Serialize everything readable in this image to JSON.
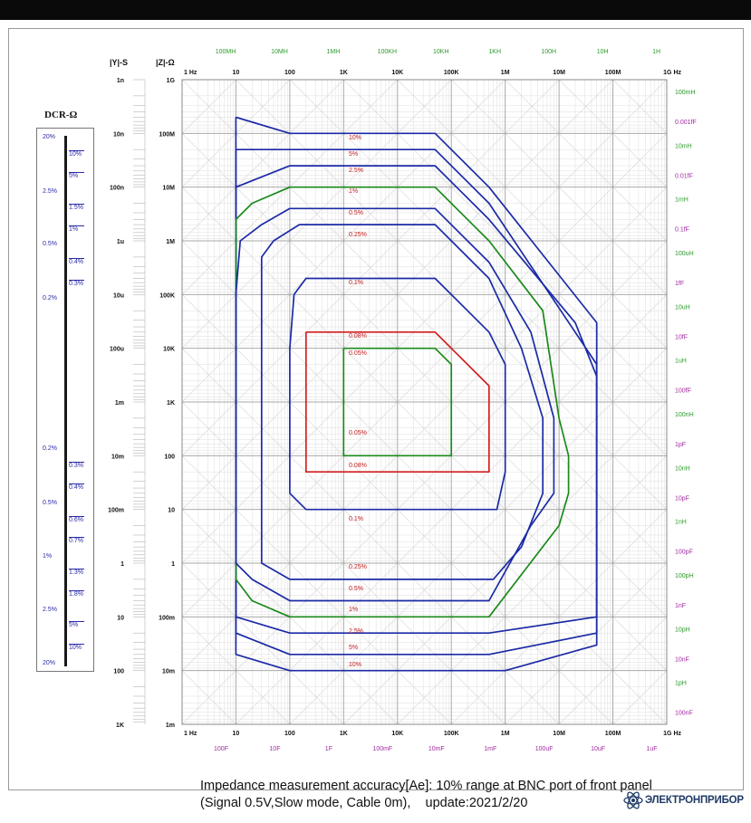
{
  "chart_data": {
    "type": "line",
    "title": "Impedance measurement accuracy[Ae]: 10% range at BNC port of front panel",
    "subtitle": "(Signal 0.5V,Slow mode, Cable 0m),    update:2021/2/20",
    "x_axis": {
      "scale": "log",
      "range_hz": [
        1,
        1000000000
      ],
      "tick_labels": [
        "1 Hz",
        "10",
        "100",
        "1K",
        "10K",
        "100K",
        "1M",
        "10M",
        "100M",
        "1G Hz"
      ]
    },
    "z_axis": {
      "label": "|Z|-Ω",
      "scale": "log",
      "range_ohm": [
        0.001,
        1000000000
      ],
      "tick_labels": [
        "1G",
        "100M",
        "10M",
        "1M",
        "100K",
        "10K",
        "1K",
        "100",
        "10",
        "1",
        "100m",
        "10m",
        "1m"
      ]
    },
    "y_axis": {
      "label": "|Y|-S",
      "tick_labels": [
        "1n",
        "10n",
        "100n",
        "1u",
        "10u",
        "100u",
        "1m",
        "10m",
        "100m",
        "1",
        "10",
        "100",
        "1K"
      ]
    },
    "inductance_labels_top": [
      "100MH",
      "10MH",
      "1MH",
      "100KH",
      "10KH",
      "1KH",
      "100H",
      "10H",
      "1H"
    ],
    "inductance_labels_right": [
      "100mH",
      "10mH",
      "1mH",
      "100uH",
      "10uH",
      "1uH",
      "100nH",
      "10nH",
      "1nH",
      "100pH",
      "10pH",
      "1pH"
    ],
    "capacitance_labels_right": [
      "0.001fF",
      "0.01fF",
      "0.1fF",
      "1fF",
      "10fF",
      "100fF",
      "1pF",
      "10pF",
      "100pF",
      "1nF",
      "10nF",
      "100nF"
    ],
    "capacitance_labels_bottom": [
      "100F",
      "10F",
      "1F",
      "100mF",
      "10mF",
      "1mF",
      "100uF",
      "10uF",
      "1uF"
    ],
    "contours": [
      {
        "level": "10%",
        "color": "#1b2aa6",
        "points": [
          [
            10,
            200000000.0
          ],
          [
            100,
            100000000.0
          ],
          [
            50000,
            100000000.0
          ],
          [
            500000,
            10000000.0
          ],
          [
            50000000,
            30000
          ],
          [
            50000000,
            0.03
          ],
          [
            1000000,
            0.01
          ],
          [
            100,
            0.01
          ],
          [
            10,
            0.02
          ],
          [
            10,
            200000000.0
          ]
        ]
      },
      {
        "level": "5%",
        "color": "#1b2aa6",
        "points": [
          [
            10,
            50000000.0
          ],
          [
            100,
            50000000.0
          ],
          [
            50000,
            50000000.0
          ],
          [
            500000,
            5000000.0
          ],
          [
            50000000,
            5000
          ],
          [
            50000000,
            0.05
          ],
          [
            500000,
            0.02
          ],
          [
            100,
            0.02
          ],
          [
            10,
            0.05
          ],
          [
            10,
            50000000.0
          ]
        ]
      },
      {
        "level": "2.5%",
        "color": "#1b2aa6",
        "points": [
          [
            10,
            10000000.0
          ],
          [
            100,
            25000000.0
          ],
          [
            50000,
            25000000.0
          ],
          [
            500000,
            2500000.0
          ],
          [
            20000000,
            30000
          ],
          [
            50000000,
            3000
          ],
          [
            50000000,
            0.1
          ],
          [
            500000,
            0.05
          ],
          [
            100,
            0.05
          ],
          [
            10,
            0.1
          ],
          [
            10,
            10000000.0
          ]
        ]
      },
      {
        "level": "1%",
        "color": "#1a8a1a",
        "points": [
          [
            10,
            2500000.0
          ],
          [
            20,
            5000000.0
          ],
          [
            100,
            10000000.0
          ],
          [
            50000,
            10000000.0
          ],
          [
            500000,
            1000000.0
          ],
          [
            5000000,
            50000
          ],
          [
            10000000,
            500
          ],
          [
            15000000,
            100
          ],
          [
            15000000,
            20
          ],
          [
            10000000,
            5
          ],
          [
            500000,
            0.1
          ],
          [
            100,
            0.1
          ],
          [
            20,
            0.2
          ],
          [
            10,
            0.5
          ],
          [
            10,
            2500000.0
          ]
        ]
      },
      {
        "level": "0.5%",
        "color": "#1b2aa6",
        "points": [
          [
            10,
            100000.0
          ],
          [
            12,
            1000000.0
          ],
          [
            30,
            2000000.0
          ],
          [
            100,
            4000000.0
          ],
          [
            50000,
            4000000.0
          ],
          [
            500000,
            400000.0
          ],
          [
            3000000,
            20000
          ],
          [
            8000000,
            500
          ],
          [
            8000000,
            20
          ],
          [
            3000000,
            5
          ],
          [
            500000,
            0.2
          ],
          [
            100,
            0.2
          ],
          [
            20,
            0.5
          ],
          [
            10,
            1
          ],
          [
            10,
            100000.0
          ]
        ]
      },
      {
        "level": "0.25%",
        "color": "#1b2aa6",
        "points": [
          [
            30,
            100000.0
          ],
          [
            30,
            500000.0
          ],
          [
            50,
            1000000.0
          ],
          [
            150,
            2000000.0
          ],
          [
            50000,
            2000000.0
          ],
          [
            500000,
            200000.0
          ],
          [
            2000000,
            10000
          ],
          [
            5000000,
            500
          ],
          [
            5000000,
            20
          ],
          [
            2000000,
            2
          ],
          [
            600000,
            0.5
          ],
          [
            100,
            0.5
          ],
          [
            30,
            1
          ],
          [
            30,
            100000.0
          ]
        ]
      },
      {
        "level": "0.1%",
        "color": "#1b2aa6",
        "points": [
          [
            100,
            10000
          ],
          [
            100,
            10000
          ],
          [
            120,
            100000.0
          ],
          [
            200,
            200000.0
          ],
          [
            50000,
            200000.0
          ],
          [
            500000,
            20000
          ],
          [
            1000000,
            5000
          ],
          [
            1000000,
            50
          ],
          [
            700000,
            10
          ],
          [
            200,
            10
          ],
          [
            100,
            20
          ],
          [
            100,
            10000
          ]
        ]
      },
      {
        "level": "0.08%",
        "color": "#d21d1d",
        "points": [
          [
            200,
            20000
          ],
          [
            50000,
            20000
          ],
          [
            500000,
            2000
          ],
          [
            500000,
            50
          ],
          [
            200,
            50
          ],
          [
            200,
            20000
          ]
        ]
      },
      {
        "level": "0.05%",
        "color": "#1a8a1a",
        "points": [
          [
            1000,
            10000
          ],
          [
            50000,
            10000
          ],
          [
            100000,
            5000
          ],
          [
            100000,
            100
          ],
          [
            1000,
            100
          ],
          [
            1000,
            10000
          ]
        ]
      }
    ],
    "contour_labels_upper": [
      "10%",
      "5%",
      "2.5%",
      "1%",
      "0.5%",
      "0.25%",
      "0.1%",
      "0.08%",
      "0.05%"
    ],
    "contour_labels_lower": [
      "0.05%",
      "0.08%",
      "0.1%",
      "0.25%",
      "0.5%",
      "1%",
      "2.5%",
      "5%",
      "10%"
    ],
    "dcr": {
      "title": "DCR-Ω",
      "left_labels": [
        "20%",
        "2.5%",
        "0.5%",
        "0.2%",
        "0.2%",
        "0.5%",
        "1%",
        "2.5%",
        "20%"
      ],
      "right_labels": [
        "10%",
        "5%",
        "1.5%",
        "1%",
        "0.4%",
        "0.3%",
        "0.3%",
        "0.4%",
        "0.6%",
        "0.7%",
        "1.3%",
        "1.8%",
        "5%",
        "10%"
      ]
    },
    "colors": {
      "blue": "#1b2aa6",
      "green": "#1a8a1a",
      "red": "#d21d1d",
      "grid": "#c8c8c8",
      "purple": "#a02aa0",
      "label_green": "#2c9a2c"
    }
  },
  "brand": {
    "name": "ЭЛЕКТРОНПРИБОР"
  }
}
